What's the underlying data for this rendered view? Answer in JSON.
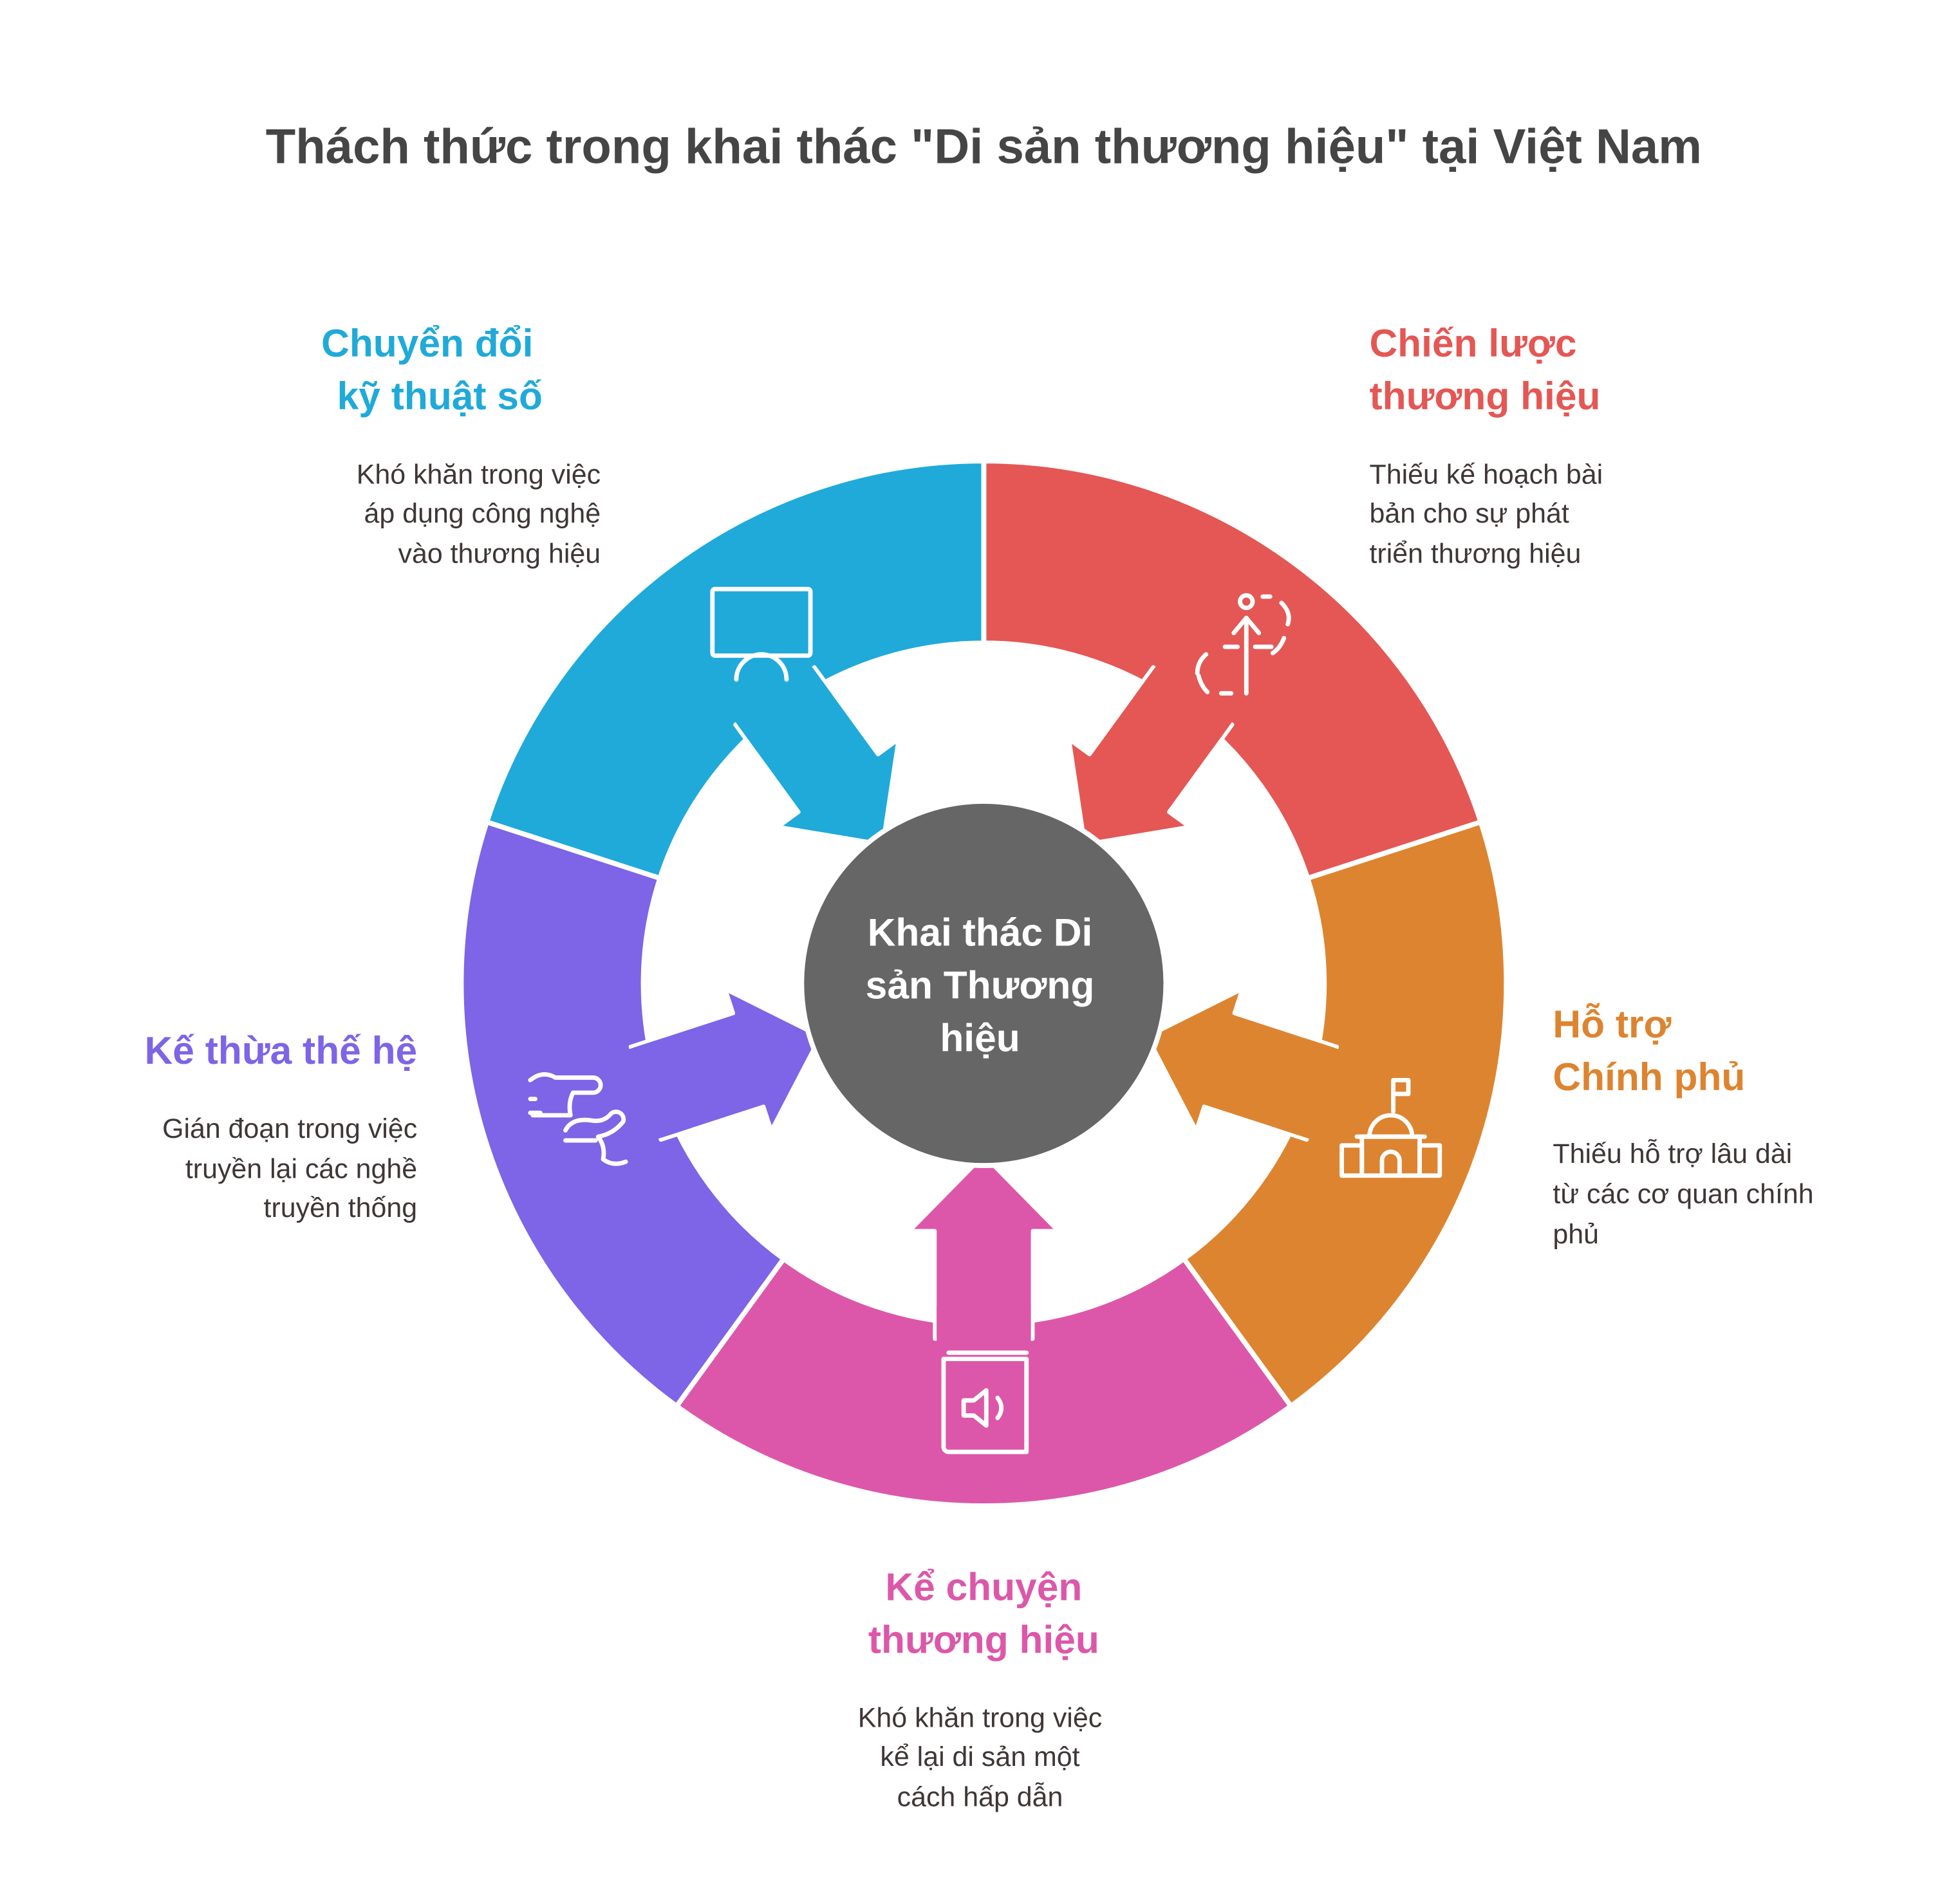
{
  "title": "Thách thức trong khai thác \"Di sản thương hiệu\" tại Việt Nam",
  "center": {
    "lines": [
      "Khai thác Di",
      "sản Thương",
      "hiệu"
    ],
    "color": "#666666"
  },
  "segments": [
    {
      "id": "strategy",
      "color": "#E45754",
      "icon": "strategy-path-icon",
      "title": [
        "Chiến lược",
        "thương hiệu"
      ],
      "desc": [
        "Thiếu kế hoạch bài",
        "bản cho sự phát",
        "triển thương hiệu"
      ]
    },
    {
      "id": "government",
      "color": "#DD8430",
      "icon": "government-building-icon",
      "title": [
        "Hỗ trợ",
        "Chính phủ"
      ],
      "desc": [
        "Thiếu hỗ trợ lâu dài",
        "từ các cơ quan chính",
        "phủ"
      ]
    },
    {
      "id": "storytelling",
      "color": "#DC57A9",
      "icon": "audio-book-icon",
      "title": [
        "Kể chuyện",
        "thương hiệu"
      ],
      "desc": [
        "Khó khăn trong việc",
        "kể lại di sản một",
        "cách hấp dẫn"
      ]
    },
    {
      "id": "heritage",
      "color": "#7E64E6",
      "icon": "handover-hands-icon",
      "title": [
        "Kế thừa thế hệ"
      ],
      "desc": [
        "Gián đoạn trong việc",
        "truyền lại các nghề",
        "truyền thống"
      ]
    },
    {
      "id": "digital",
      "color": "#1FAAD9",
      "icon": "monitor-user-icon",
      "title": [
        "Chuyển đổi",
        "kỹ thuật số"
      ],
      "desc": [
        "Khó khăn trong việc",
        "áp dụng công nghệ",
        "vào thương hiệu"
      ]
    }
  ]
}
